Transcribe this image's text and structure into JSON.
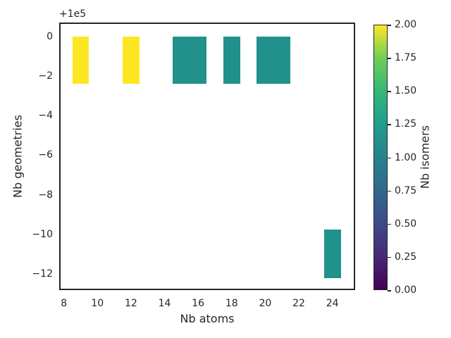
{
  "figure": {
    "background": "#ffffff",
    "text_color": "#262626",
    "spine_color": "#262626"
  },
  "chart_data": {
    "type": "bar",
    "title": "",
    "xlabel": "Nb atoms",
    "ylabel": "Nb geometries",
    "y_offset_text": "+1e5",
    "grid": false,
    "xlim": [
      7.72,
      25.36
    ],
    "ylim": [
      -12.81,
      0.7
    ],
    "xticks": {
      "values": [
        8,
        10,
        12,
        14,
        16,
        18,
        20,
        22,
        24
      ],
      "labels": [
        "8",
        "10",
        "12",
        "14",
        "16",
        "18",
        "20",
        "22",
        "24"
      ]
    },
    "yticks": {
      "values": [
        0,
        -2,
        -4,
        -6,
        -8,
        -10,
        -12
      ],
      "labels": [
        "0",
        "−2",
        "−4",
        "−6",
        "−8",
        "−10",
        "−12"
      ]
    },
    "bars": [
      {
        "x": 9,
        "width": 1,
        "y_top": 0,
        "y_bottom": -2.4,
        "isomers": 2,
        "color": "#fde725"
      },
      {
        "x": 12,
        "width": 1,
        "y_top": 0,
        "y_bottom": -2.4,
        "isomers": 2,
        "color": "#fde725"
      },
      {
        "x": 15,
        "width": 1,
        "y_top": 0,
        "y_bottom": -2.4,
        "isomers": 1,
        "color": "#21918c"
      },
      {
        "x": 16,
        "width": 1,
        "y_top": 0,
        "y_bottom": -2.4,
        "isomers": 1,
        "color": "#21918c"
      },
      {
        "x": 18,
        "width": 1,
        "y_top": 0,
        "y_bottom": -2.4,
        "isomers": 1,
        "color": "#21918c"
      },
      {
        "x": 20,
        "width": 1,
        "y_top": 0,
        "y_bottom": -2.4,
        "isomers": 1,
        "color": "#21918c"
      },
      {
        "x": 21,
        "width": 1,
        "y_top": 0,
        "y_bottom": -2.4,
        "isomers": 1,
        "color": "#21918c"
      },
      {
        "x": 24,
        "width": 1,
        "y_top": -9.75,
        "y_bottom": -12.2,
        "isomers": 1,
        "color": "#21918c"
      }
    ],
    "colorbar": {
      "label": "Nb isomers",
      "cmap": "viridis",
      "vmin": 0.0,
      "vmax": 2.0,
      "ticks": {
        "values": [
          2.0,
          1.75,
          1.5,
          1.25,
          1.0,
          0.75,
          0.5,
          0.25,
          0.0
        ],
        "labels": [
          "2.00",
          "1.75",
          "1.50",
          "1.25",
          "1.00",
          "0.75",
          "0.50",
          "0.25",
          "0.00"
        ]
      },
      "gradient_stops": [
        "#440154",
        "#482878",
        "#3e4a89",
        "#31688e",
        "#26828e",
        "#1f9e89",
        "#35b779",
        "#6ece58",
        "#fde725"
      ]
    },
    "value_colors": {
      "isomers_1": "#21918c",
      "isomers_2": "#fde725"
    }
  }
}
